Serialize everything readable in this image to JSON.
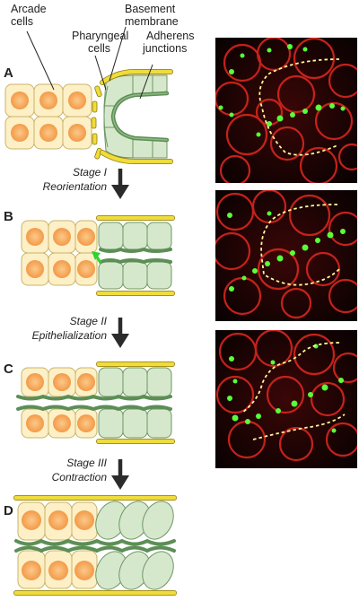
{
  "labels": {
    "arcade": [
      "Arcade",
      "cells"
    ],
    "basement": [
      "Basement",
      "membrane"
    ],
    "pharyngeal": [
      "Pharyngeal",
      "cells"
    ],
    "adherens": [
      "Adherens",
      "junctions"
    ]
  },
  "panels": [
    "A",
    "B",
    "C",
    "D"
  ],
  "stages": [
    {
      "number": "Stage I",
      "name": "Reorientation"
    },
    {
      "number": "Stage II",
      "name": "Epithelialization"
    },
    {
      "number": "Stage III",
      "name": "Contraction"
    }
  ],
  "colors": {
    "arcade_fill": "#fdf0c6",
    "arcade_stroke": "#c9b46a",
    "nucleus": "#f6a253",
    "pharyngeal_fill": "#d6e8cb",
    "pharyngeal_stroke": "#6f9666",
    "junction": "#5c8e56",
    "membrane": "#f0dc3a",
    "membrane_stroke": "#8c7a10",
    "arrow": "#2b2b2b",
    "green_arrow": "#2fd22f"
  }
}
